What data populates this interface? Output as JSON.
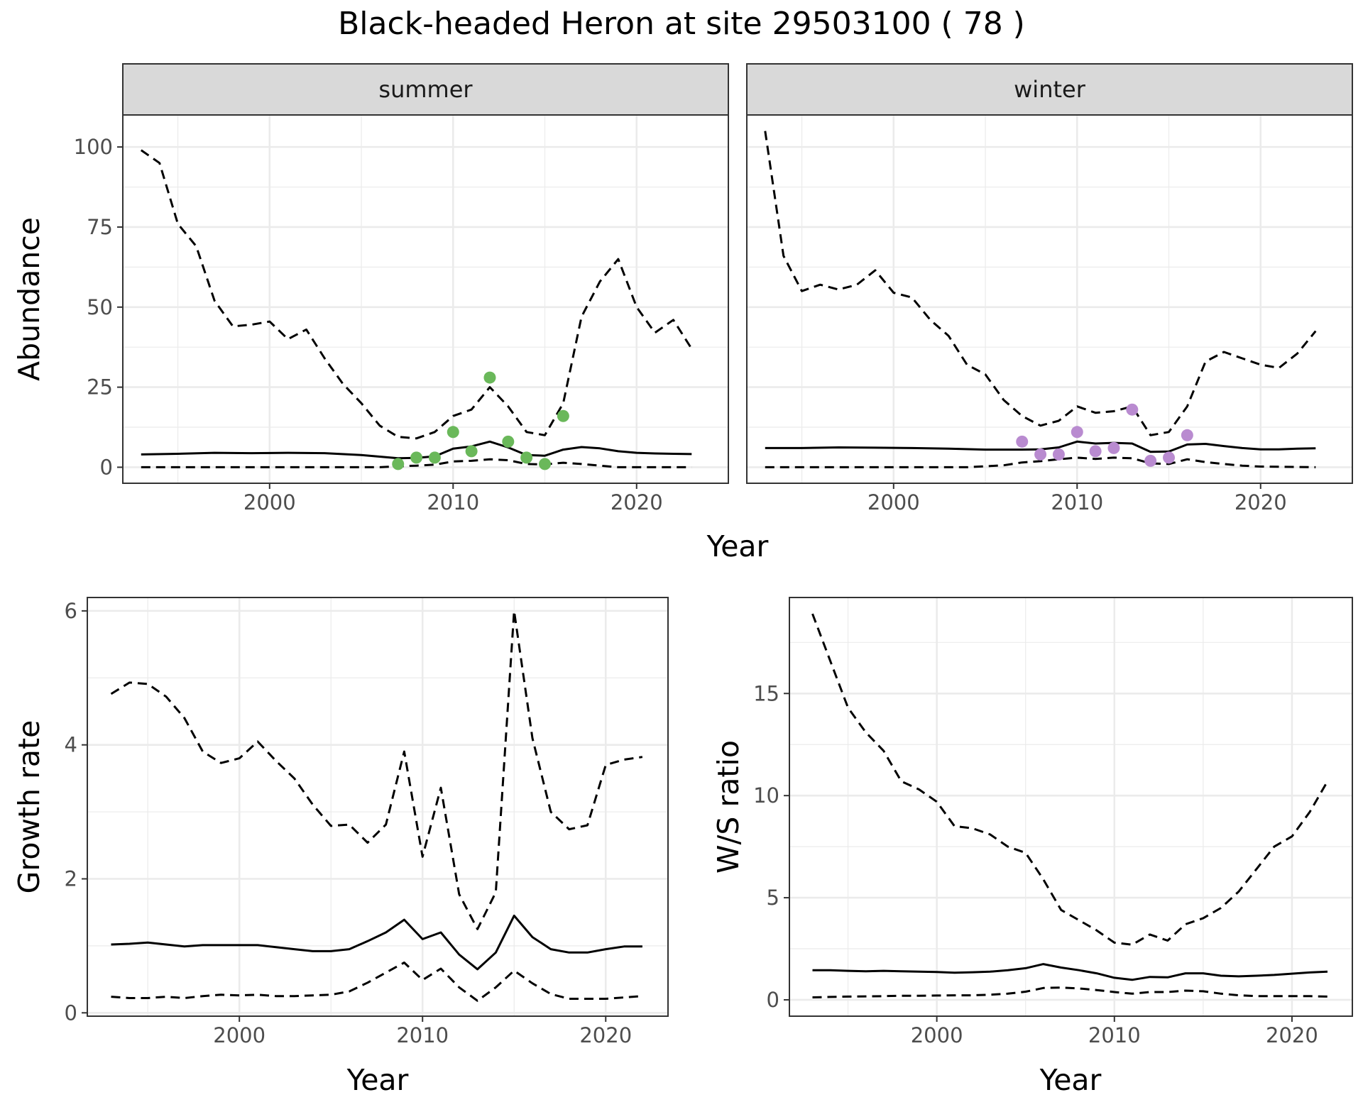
{
  "title": "Black-headed Heron at site 29503100 ( 78 )",
  "colors": {
    "summer_points": "#6ab85a",
    "winter_points": "#b98bd0",
    "line": "#000000",
    "strip_fill": "#d9d9d9",
    "grid": "#ebebeb"
  },
  "chart_data": [
    {
      "type": "line",
      "panel": "summer",
      "strip_label": "summer",
      "xlabel": "Year",
      "ylabel": "Abundance",
      "xlim": [
        1992,
        2025
      ],
      "ylim": [
        -5,
        110
      ],
      "xticks": [
        2000,
        2010,
        2020
      ],
      "yticks": [
        0,
        25,
        50,
        75,
        100
      ],
      "grid": true,
      "series": [
        {
          "style": "solid",
          "x": [
            1993,
            1995,
            1997,
            1999,
            2001,
            2003,
            2005,
            2007,
            2008,
            2009,
            2010,
            2011,
            2012,
            2013,
            2014,
            2015,
            2016,
            2017,
            2018,
            2019,
            2020,
            2021,
            2022,
            2023
          ],
          "y": [
            4,
            4.2,
            4.5,
            4.4,
            4.5,
            4.4,
            3.8,
            2.8,
            2.9,
            3.4,
            5.8,
            6.5,
            8,
            6.2,
            3.8,
            3.6,
            5.5,
            6.3,
            5.9,
            5,
            4.5,
            4.3,
            4.2,
            4.1
          ]
        },
        {
          "style": "dashed",
          "x": [
            1993,
            1994,
            1995,
            1996,
            1997,
            1998,
            1999,
            2000,
            2001,
            2002,
            2003,
            2004,
            2005,
            2006,
            2007,
            2008,
            2009,
            2010,
            2011,
            2012,
            2013,
            2014,
            2015,
            2016,
            2017,
            2018,
            2019,
            2020,
            2021,
            2022,
            2023
          ],
          "y": [
            99,
            95,
            76,
            69,
            52,
            44,
            44.5,
            45.5,
            40,
            43,
            34,
            26,
            20,
            13,
            9.5,
            9,
            11,
            16,
            18,
            25,
            19,
            11,
            10,
            20,
            47,
            58,
            65,
            50,
            42,
            46,
            37
          ]
        },
        {
          "style": "dashed",
          "x": [
            1993,
            2006,
            2007,
            2008,
            2009,
            2010,
            2011,
            2012,
            2013,
            2014,
            2015,
            2016,
            2017,
            2018,
            2019,
            2023
          ],
          "y": [
            0,
            0,
            0.3,
            0.5,
            0.8,
            1.8,
            2,
            2.5,
            2.2,
            1,
            0.9,
            1.4,
            1,
            0.5,
            0,
            0
          ]
        }
      ],
      "points": {
        "x": [
          2007,
          2008,
          2009,
          2010,
          2011,
          2012,
          2013,
          2014,
          2015,
          2016
        ],
        "y": [
          1,
          3,
          3,
          11,
          5,
          28,
          8,
          3,
          1,
          16
        ]
      }
    },
    {
      "type": "line",
      "panel": "winter",
      "strip_label": "winter",
      "xlabel": "Year",
      "ylabel": "Abundance",
      "xlim": [
        1992,
        2025
      ],
      "ylim": [
        -5,
        110
      ],
      "xticks": [
        2000,
        2010,
        2020
      ],
      "yticks": [
        0,
        25,
        50,
        75,
        100
      ],
      "grid": true,
      "series": [
        {
          "style": "solid",
          "x": [
            1993,
            1995,
            1997,
            1999,
            2001,
            2003,
            2005,
            2007,
            2008,
            2009,
            2010,
            2011,
            2012,
            2013,
            2014,
            2015,
            2016,
            2017,
            2018,
            2019,
            2020,
            2021,
            2022,
            2023
          ],
          "y": [
            6,
            6,
            6.2,
            6.1,
            6,
            5.8,
            5.5,
            5.5,
            5.6,
            6.2,
            8,
            7.4,
            7.6,
            7.4,
            4.8,
            4.9,
            7.1,
            7.3,
            6.6,
            6,
            5.6,
            5.6,
            5.8,
            5.9
          ]
        },
        {
          "style": "dashed",
          "x": [
            1993,
            1994,
            1995,
            1996,
            1997,
            1998,
            1999,
            2000,
            2001,
            2002,
            2003,
            2004,
            2005,
            2006,
            2007,
            2008,
            2009,
            2010,
            2011,
            2012,
            2013,
            2014,
            2015,
            2016,
            2017,
            2018,
            2019,
            2020,
            2021,
            2022,
            2023
          ],
          "y": [
            105,
            66,
            55,
            57,
            55.5,
            57,
            61.5,
            54.5,
            53,
            46,
            41,
            32,
            29,
            21,
            16,
            13,
            14.5,
            19,
            17,
            17.5,
            19,
            10,
            11,
            19,
            33,
            36,
            34,
            32,
            31,
            35.5,
            42.5
          ]
        },
        {
          "style": "dashed",
          "x": [
            1993,
            2004,
            2005,
            2006,
            2007,
            2008,
            2009,
            2010,
            2011,
            2012,
            2013,
            2014,
            2015,
            2016,
            2017,
            2018,
            2019,
            2020,
            2023
          ],
          "y": [
            0,
            0,
            0.3,
            0.6,
            1.5,
            1.9,
            2.5,
            3,
            2.6,
            3,
            2.8,
            1.2,
            1,
            2.5,
            1.6,
            1,
            0.5,
            0.2,
            0
          ]
        }
      ],
      "points": {
        "x": [
          2007,
          2008,
          2009,
          2010,
          2011,
          2012,
          2013,
          2014,
          2015,
          2016
        ],
        "y": [
          8,
          4,
          4,
          11,
          5,
          6,
          18,
          2,
          3,
          10
        ]
      }
    },
    {
      "type": "line",
      "panel": "growth",
      "xlabel": "Year",
      "ylabel": "Growth rate",
      "xlim": [
        1991.7,
        2023.4
      ],
      "ylim": [
        -0.05,
        6.2
      ],
      "xticks": [
        2000,
        2010,
        2020
      ],
      "yticks": [
        0,
        2,
        4,
        6
      ],
      "grid": true,
      "series": [
        {
          "style": "solid",
          "x": [
            1993,
            1994,
            1995,
            1996,
            1997,
            1998,
            1999,
            2000,
            2001,
            2002,
            2003,
            2004,
            2005,
            2006,
            2007,
            2008,
            2009,
            2010,
            2011,
            2012,
            2013,
            2014,
            2015,
            2016,
            2017,
            2018,
            2019,
            2020,
            2021,
            2022
          ],
          "y": [
            1.02,
            1.03,
            1.05,
            1.02,
            0.99,
            1.01,
            1.01,
            1.01,
            1.01,
            0.98,
            0.95,
            0.92,
            0.92,
            0.95,
            1.07,
            1.2,
            1.39,
            1.1,
            1.2,
            0.87,
            0.65,
            0.9,
            1.45,
            1.13,
            0.95,
            0.9,
            0.9,
            0.95,
            0.99,
            0.99
          ]
        },
        {
          "style": "dashed",
          "x": [
            1993,
            1994,
            1995,
            1996,
            1997,
            1998,
            1999,
            2000,
            2001,
            2002,
            2003,
            2004,
            2005,
            2006,
            2007,
            2008,
            2009,
            2010,
            2011,
            2012,
            2013,
            2014,
            2015,
            2016,
            2017,
            2018,
            2019,
            2020,
            2021,
            2022
          ],
          "y": [
            4.76,
            4.93,
            4.91,
            4.72,
            4.4,
            3.9,
            3.73,
            3.8,
            4.05,
            3.76,
            3.5,
            3.11,
            2.79,
            2.81,
            2.54,
            2.81,
            3.9,
            2.33,
            3.36,
            1.77,
            1.25,
            1.8,
            6,
            4.1,
            3,
            2.74,
            2.8,
            3.7,
            3.78,
            3.82
          ]
        },
        {
          "style": "dashed",
          "x": [
            1993,
            1994,
            1995,
            1996,
            1997,
            1998,
            1999,
            2000,
            2001,
            2002,
            2003,
            2004,
            2005,
            2006,
            2007,
            2008,
            2009,
            2010,
            2011,
            2012,
            2013,
            2014,
            2015,
            2016,
            2017,
            2018,
            2019,
            2020,
            2021,
            2022
          ],
          "y": [
            0.24,
            0.22,
            0.22,
            0.24,
            0.22,
            0.25,
            0.27,
            0.26,
            0.27,
            0.25,
            0.25,
            0.26,
            0.27,
            0.32,
            0.45,
            0.6,
            0.75,
            0.49,
            0.66,
            0.38,
            0.18,
            0.38,
            0.63,
            0.44,
            0.28,
            0.21,
            0.21,
            0.21,
            0.23,
            0.25
          ]
        }
      ]
    },
    {
      "type": "line",
      "panel": "ws_ratio",
      "xlabel": "Year",
      "ylabel": "W/S ratio",
      "xlim": [
        1991.7,
        2023.4
      ],
      "ylim": [
        -0.8,
        19.7
      ],
      "xticks": [
        2000,
        2010,
        2020
      ],
      "yticks": [
        0,
        5,
        10,
        15
      ],
      "grid": true,
      "series": [
        {
          "style": "solid",
          "x": [
            1993,
            1994,
            1995,
            1996,
            1997,
            1998,
            1999,
            2000,
            2001,
            2002,
            2003,
            2004,
            2005,
            2006,
            2007,
            2008,
            2009,
            2010,
            2011,
            2012,
            2013,
            2014,
            2015,
            2016,
            2017,
            2018,
            2019,
            2020,
            2021,
            2022
          ],
          "y": [
            1.45,
            1.45,
            1.42,
            1.4,
            1.42,
            1.4,
            1.38,
            1.36,
            1.33,
            1.35,
            1.38,
            1.45,
            1.55,
            1.75,
            1.58,
            1.45,
            1.3,
            1.08,
            0.98,
            1.12,
            1.1,
            1.3,
            1.3,
            1.18,
            1.15,
            1.18,
            1.22,
            1.28,
            1.34,
            1.38
          ]
        },
        {
          "style": "dashed",
          "x": [
            1993,
            1994,
            1995,
            1996,
            1997,
            1998,
            1999,
            2000,
            2001,
            2002,
            2003,
            2004,
            2005,
            2006,
            2007,
            2008,
            2009,
            2010,
            2011,
            2012,
            2013,
            2014,
            2015,
            2016,
            2017,
            2018,
            2019,
            2020,
            2021,
            2022
          ],
          "y": [
            18.9,
            16.6,
            14.3,
            13.1,
            12.2,
            10.7,
            10.3,
            9.7,
            8.5,
            8.4,
            8.1,
            7.5,
            7.2,
            5.9,
            4.4,
            3.9,
            3.4,
            2.8,
            2.7,
            3.2,
            2.9,
            3.7,
            4.0,
            4.5,
            5.3,
            6.4,
            7.5,
            8.0,
            9.2,
            10.7
          ]
        },
        {
          "style": "dashed",
          "x": [
            1993,
            1994,
            1995,
            1996,
            1997,
            1998,
            1999,
            2000,
            2001,
            2002,
            2003,
            2004,
            2005,
            2006,
            2007,
            2008,
            2009,
            2010,
            2011,
            2012,
            2013,
            2014,
            2015,
            2016,
            2017,
            2018,
            2019,
            2020,
            2021,
            2022
          ],
          "y": [
            0.12,
            0.14,
            0.16,
            0.17,
            0.18,
            0.2,
            0.2,
            0.21,
            0.22,
            0.22,
            0.25,
            0.3,
            0.4,
            0.58,
            0.6,
            0.56,
            0.48,
            0.38,
            0.3,
            0.38,
            0.38,
            0.45,
            0.42,
            0.3,
            0.22,
            0.18,
            0.18,
            0.18,
            0.18,
            0.16
          ]
        }
      ]
    }
  ]
}
